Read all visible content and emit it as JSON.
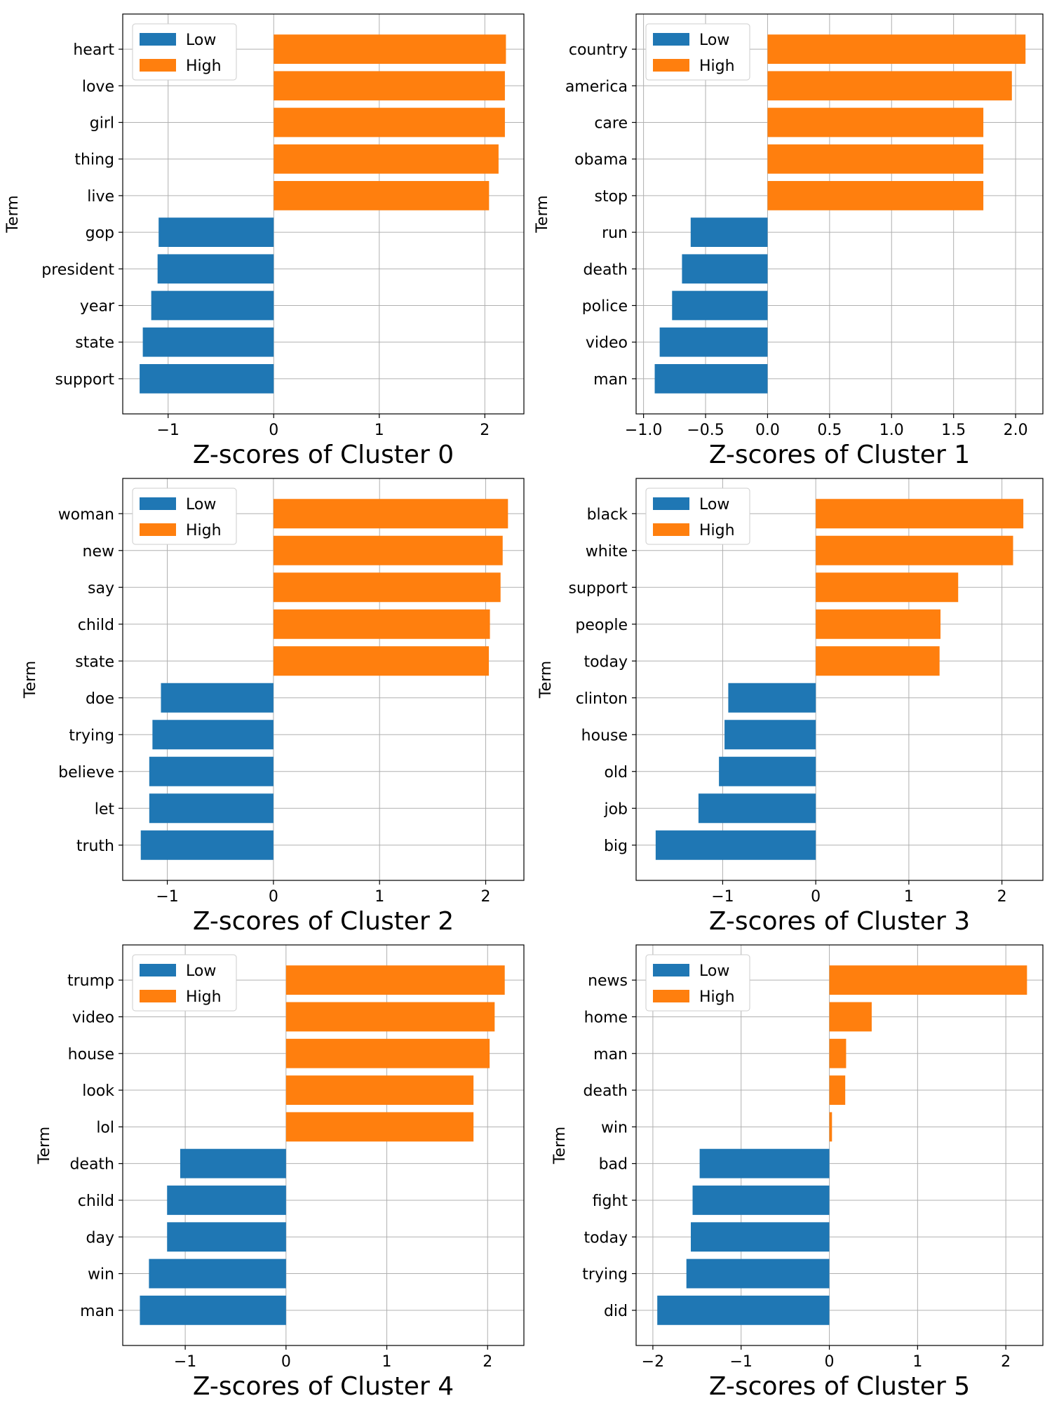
{
  "colors": {
    "low": "#1f77b4",
    "high": "#ff7f0e"
  },
  "legend": {
    "low_label": "Low",
    "high_label": "High",
    "placement": "upper-left"
  },
  "chart_data": [
    {
      "type": "bar",
      "orientation": "horizontal",
      "xlabel": "Z-scores of Cluster 0",
      "ylabel": "Term",
      "xlim": [
        -1.43,
        2.37
      ],
      "xticks": [
        -1,
        0,
        1,
        2
      ],
      "xtick_labels": [
        "−1",
        "0",
        "1",
        "2"
      ],
      "grid": true,
      "categories": [
        "heart",
        "love",
        "girl",
        "thing",
        "live",
        "gop",
        "president",
        "year",
        "state",
        "support"
      ],
      "series": [
        {
          "name": "Low",
          "values": [
            null,
            null,
            null,
            null,
            null,
            -1.09,
            -1.1,
            -1.16,
            -1.24,
            -1.27
          ]
        },
        {
          "name": "High",
          "values": [
            2.2,
            2.19,
            2.19,
            2.13,
            2.04,
            null,
            null,
            null,
            null,
            null
          ]
        }
      ]
    },
    {
      "type": "bar",
      "orientation": "horizontal",
      "xlabel": "Z-scores of Cluster 1",
      "ylabel": "Term",
      "xlim": [
        -1.06,
        2.22
      ],
      "xticks": [
        -1.0,
        -0.5,
        0.0,
        0.5,
        1.0,
        1.5,
        2.0
      ],
      "xtick_labels": [
        "−1.0",
        "−0.5",
        "0.0",
        "0.5",
        "1.0",
        "1.5",
        "2.0"
      ],
      "grid": true,
      "categories": [
        "country",
        "america",
        "care",
        "obama",
        "stop",
        "run",
        "death",
        "police",
        "video",
        "man"
      ],
      "series": [
        {
          "name": "Low",
          "values": [
            null,
            null,
            null,
            null,
            null,
            -0.62,
            -0.69,
            -0.77,
            -0.87,
            -0.91
          ]
        },
        {
          "name": "High",
          "values": [
            2.08,
            1.97,
            1.74,
            1.74,
            1.74,
            null,
            null,
            null,
            null,
            null
          ]
        }
      ]
    },
    {
      "type": "bar",
      "orientation": "horizontal",
      "xlabel": "Z-scores of Cluster 2",
      "ylabel": "Term",
      "xlim": [
        -1.42,
        2.36
      ],
      "xticks": [
        -1,
        0,
        1,
        2
      ],
      "xtick_labels": [
        "−1",
        "0",
        "1",
        "2"
      ],
      "grid": true,
      "categories": [
        "woman",
        "new",
        "say",
        "child",
        "state",
        "doe",
        "trying",
        "believe",
        "let",
        "truth"
      ],
      "series": [
        {
          "name": "Low",
          "values": [
            null,
            null,
            null,
            null,
            null,
            -1.06,
            -1.14,
            -1.17,
            -1.17,
            -1.25
          ]
        },
        {
          "name": "High",
          "values": [
            2.21,
            2.16,
            2.14,
            2.04,
            2.03,
            null,
            null,
            null,
            null,
            null
          ]
        }
      ]
    },
    {
      "type": "bar",
      "orientation": "horizontal",
      "xlabel": "Z-scores of Cluster 3",
      "ylabel": "Term",
      "xlim": [
        -1.93,
        2.44
      ],
      "xticks": [
        -1,
        0,
        1,
        2
      ],
      "xtick_labels": [
        "−1",
        "0",
        "1",
        "2"
      ],
      "grid": true,
      "categories": [
        "black",
        "white",
        "support",
        "people",
        "today",
        "clinton",
        "house",
        "old",
        "job",
        "big"
      ],
      "series": [
        {
          "name": "Low",
          "values": [
            null,
            null,
            null,
            null,
            null,
            -0.94,
            -0.98,
            -1.04,
            -1.26,
            -1.72
          ]
        },
        {
          "name": "High",
          "values": [
            2.23,
            2.12,
            1.53,
            1.34,
            1.33,
            null,
            null,
            null,
            null,
            null
          ]
        }
      ]
    },
    {
      "type": "bar",
      "orientation": "horizontal",
      "xlabel": "Z-scores of Cluster 4",
      "ylabel": "Term",
      "xlim": [
        -1.62,
        2.36
      ],
      "xticks": [
        -1,
        0,
        1,
        2
      ],
      "xtick_labels": [
        "−1",
        "0",
        "1",
        "2"
      ],
      "grid": true,
      "categories": [
        "trump",
        "video",
        "house",
        "look",
        "lol",
        "death",
        "child",
        "day",
        "win",
        "man"
      ],
      "series": [
        {
          "name": "Low",
          "values": [
            null,
            null,
            null,
            null,
            null,
            -1.05,
            -1.18,
            -1.18,
            -1.36,
            -1.45
          ]
        },
        {
          "name": "High",
          "values": [
            2.17,
            2.07,
            2.02,
            1.86,
            1.86,
            null,
            null,
            null,
            null,
            null
          ]
        }
      ]
    },
    {
      "type": "bar",
      "orientation": "horizontal",
      "xlabel": "Z-scores of Cluster 5",
      "ylabel": "Term",
      "xlim": [
        -2.19,
        2.42
      ],
      "xticks": [
        -2,
        -1,
        0,
        1,
        2
      ],
      "xtick_labels": [
        "−2",
        "−1",
        "0",
        "1",
        "2"
      ],
      "grid": true,
      "categories": [
        "news",
        "home",
        "man",
        "death",
        "win",
        "bad",
        "fight",
        "today",
        "trying",
        "did"
      ],
      "series": [
        {
          "name": "Low",
          "values": [
            null,
            null,
            null,
            null,
            null,
            -1.47,
            -1.55,
            -1.57,
            -1.62,
            -1.95
          ]
        },
        {
          "name": "High",
          "values": [
            2.24,
            0.48,
            0.19,
            0.18,
            0.03,
            null,
            null,
            null,
            null,
            null
          ]
        }
      ]
    }
  ]
}
